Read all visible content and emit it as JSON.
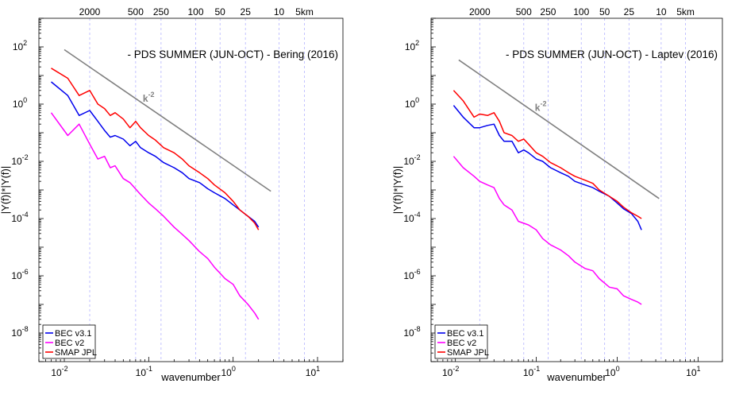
{
  "chart_data": [
    {
      "type": "line",
      "title": "- PDS SUMMER (JUN-OCT) - Bering (2016)",
      "xlabel": "wavenumber",
      "ylabel": "|Y(f)|*|Y(f)|",
      "xscale": "log",
      "yscale": "log",
      "xlim": [
        0.005,
        20
      ],
      "ylim": [
        1e-09,
        1000
      ],
      "xticks": [
        0.01,
        0.1,
        1,
        10
      ],
      "xtick_labels": [
        {
          "base": "10",
          "exp": "-2"
        },
        {
          "base": "10",
          "exp": "-1"
        },
        {
          "base": "10",
          "exp": "0"
        },
        {
          "base": "10",
          "exp": "1"
        }
      ],
      "yticks": [
        1e-08,
        1e-06,
        0.0001,
        0.01,
        1,
        100
      ],
      "ytick_labels": [
        {
          "base": "10",
          "exp": "-8"
        },
        {
          "base": "10",
          "exp": "-6"
        },
        {
          "base": "10",
          "exp": "-4"
        },
        {
          "base": "10",
          "exp": "-2"
        },
        {
          "base": "10",
          "exp": "0"
        },
        {
          "base": "10",
          "exp": "2"
        }
      ],
      "top_axis": {
        "labels": [
          "2000",
          "500",
          "250",
          "100",
          "50",
          "25",
          "10",
          "5km"
        ],
        "positions": [
          0.02,
          0.07,
          0.14,
          0.36,
          0.7,
          1.4,
          3.5,
          7
        ],
        "gridlines": [
          0.02,
          0.07,
          0.14,
          0.36,
          0.7,
          1.4,
          3.5,
          7
        ],
        "grid_color": "#b3b3ff"
      },
      "legend": {
        "placement": "bottom-left",
        "entries": [
          "BEC v3.1",
          "BEC v2",
          "SMAP JPL"
        ]
      },
      "reference_line": {
        "label": "k",
        "exponent": "-2",
        "color": "#808080",
        "x": [
          0.01,
          2.8
        ],
        "y": [
          80,
          0.0009
        ]
      },
      "series": [
        {
          "name": "BEC v3.1",
          "color": "#0000ee",
          "x": [
            0.007,
            0.011,
            0.015,
            0.02,
            0.025,
            0.03,
            0.035,
            0.04,
            0.05,
            0.06,
            0.07,
            0.08,
            0.1,
            0.12,
            0.15,
            0.2,
            0.25,
            0.3,
            0.4,
            0.5,
            0.6,
            0.8,
            1.0,
            1.2,
            1.5,
            1.8,
            2.0
          ],
          "y": [
            6,
            2,
            0.4,
            0.6,
            0.25,
            0.12,
            0.07,
            0.08,
            0.06,
            0.035,
            0.05,
            0.03,
            0.02,
            0.015,
            0.009,
            0.006,
            0.004,
            0.0025,
            0.0018,
            0.0011,
            0.0008,
            0.0005,
            0.0003,
            0.0002,
            0.00012,
            8e-05,
            5e-05
          ]
        },
        {
          "name": "BEC v2",
          "color": "#ff00ff",
          "x": [
            0.007,
            0.011,
            0.015,
            0.02,
            0.025,
            0.03,
            0.035,
            0.04,
            0.05,
            0.06,
            0.08,
            0.1,
            0.12,
            0.15,
            0.2,
            0.25,
            0.3,
            0.4,
            0.5,
            0.6,
            0.8,
            1.0,
            1.2,
            1.5,
            1.8,
            2.0
          ],
          "y": [
            0.5,
            0.08,
            0.2,
            0.04,
            0.012,
            0.015,
            0.006,
            0.007,
            0.0025,
            0.0018,
            0.0007,
            0.00035,
            0.00022,
            0.00012,
            5e-05,
            2.8e-05,
            1.7e-05,
            7e-06,
            4e-06,
            2e-06,
            8e-07,
            5e-07,
            2e-07,
            1e-07,
            5e-08,
            3e-08
          ]
        },
        {
          "name": "SMAP JPL",
          "color": "#ff0000",
          "x": [
            0.007,
            0.011,
            0.015,
            0.02,
            0.025,
            0.03,
            0.035,
            0.04,
            0.05,
            0.06,
            0.07,
            0.08,
            0.1,
            0.12,
            0.15,
            0.2,
            0.25,
            0.3,
            0.4,
            0.5,
            0.6,
            0.8,
            1.0,
            1.2,
            1.5,
            1.8,
            2.0
          ],
          "y": [
            18,
            8,
            2,
            3,
            1,
            0.7,
            0.4,
            0.5,
            0.3,
            0.15,
            0.25,
            0.15,
            0.08,
            0.055,
            0.03,
            0.02,
            0.012,
            0.007,
            0.004,
            0.0025,
            0.0015,
            0.0008,
            0.0004,
            0.0002,
            0.00012,
            7e-05,
            4e-05
          ]
        }
      ]
    },
    {
      "type": "line",
      "title": "- PDS SUMMER (JUN-OCT) - Laptev (2016)",
      "xlabel": "wavenumber",
      "ylabel": "|Y(f)|*|Y(f)|",
      "xscale": "log",
      "yscale": "log",
      "xlim": [
        0.005,
        20
      ],
      "ylim": [
        1e-09,
        1000
      ],
      "xticks": [
        0.01,
        0.1,
        1,
        10
      ],
      "xtick_labels": [
        {
          "base": "10",
          "exp": "-2"
        },
        {
          "base": "10",
          "exp": "-1"
        },
        {
          "base": "10",
          "exp": "0"
        },
        {
          "base": "10",
          "exp": "1"
        }
      ],
      "yticks": [
        1e-08,
        1e-06,
        0.0001,
        0.01,
        1,
        100
      ],
      "ytick_labels": [
        {
          "base": "10",
          "exp": "-8"
        },
        {
          "base": "10",
          "exp": "-6"
        },
        {
          "base": "10",
          "exp": "-4"
        },
        {
          "base": "10",
          "exp": "-2"
        },
        {
          "base": "10",
          "exp": "0"
        },
        {
          "base": "10",
          "exp": "2"
        }
      ],
      "top_axis": {
        "labels": [
          "2000",
          "500",
          "250",
          "100",
          "50",
          "25",
          "10",
          "5km"
        ],
        "positions": [
          0.02,
          0.07,
          0.14,
          0.36,
          0.7,
          1.4,
          3.5,
          7
        ],
        "gridlines": [
          0.02,
          0.07,
          0.14,
          0.36,
          0.7,
          1.4,
          3.5,
          7
        ],
        "grid_color": "#b3b3ff"
      },
      "legend": {
        "placement": "bottom-left",
        "entries": [
          "BEC v3.1",
          "BEC v2",
          "SMAP JPL"
        ]
      },
      "reference_line": {
        "label": "k",
        "exponent": "-2",
        "color": "#808080",
        "x": [
          0.011,
          3.3
        ],
        "y": [
          35,
          0.0005
        ]
      },
      "series": [
        {
          "name": "BEC v3.1",
          "color": "#0000ee",
          "x": [
            0.0095,
            0.0125,
            0.017,
            0.02,
            0.025,
            0.03,
            0.035,
            0.04,
            0.05,
            0.06,
            0.07,
            0.08,
            0.1,
            0.12,
            0.15,
            0.2,
            0.25,
            0.3,
            0.4,
            0.5,
            0.6,
            0.8,
            1.0,
            1.2,
            1.5,
            1.8,
            2.0
          ],
          "y": [
            0.9,
            0.35,
            0.15,
            0.15,
            0.18,
            0.2,
            0.08,
            0.05,
            0.05,
            0.02,
            0.025,
            0.02,
            0.012,
            0.01,
            0.006,
            0.004,
            0.003,
            0.002,
            0.0015,
            0.0012,
            0.0009,
            0.0006,
            0.00035,
            0.00022,
            0.00015,
            8e-05,
            4e-05
          ]
        },
        {
          "name": "BEC v2",
          "color": "#ff00ff",
          "x": [
            0.0095,
            0.0125,
            0.017,
            0.02,
            0.025,
            0.03,
            0.035,
            0.04,
            0.05,
            0.06,
            0.08,
            0.1,
            0.12,
            0.15,
            0.2,
            0.25,
            0.3,
            0.4,
            0.5,
            0.6,
            0.8,
            1.0,
            1.2,
            1.5,
            1.8,
            2.0
          ],
          "y": [
            0.015,
            0.006,
            0.003,
            0.002,
            0.0015,
            0.0012,
            0.0005,
            0.0003,
            0.0002,
            8e-05,
            6e-05,
            4e-05,
            2e-05,
            1.2e-05,
            8e-06,
            5e-06,
            3e-06,
            1.8e-06,
            1.5e-06,
            8e-07,
            4e-07,
            3.5e-07,
            2e-07,
            1.5e-07,
            1.2e-07,
            1e-07
          ]
        },
        {
          "name": "SMAP JPL",
          "color": "#ff0000",
          "x": [
            0.0095,
            0.0125,
            0.017,
            0.02,
            0.025,
            0.03,
            0.035,
            0.04,
            0.05,
            0.06,
            0.07,
            0.08,
            0.1,
            0.12,
            0.15,
            0.2,
            0.25,
            0.3,
            0.4,
            0.5,
            0.6,
            0.8,
            1.0,
            1.2,
            1.5,
            1.8,
            2.0
          ],
          "y": [
            3,
            1.3,
            0.35,
            0.45,
            0.4,
            0.5,
            0.25,
            0.1,
            0.08,
            0.05,
            0.06,
            0.04,
            0.02,
            0.015,
            0.009,
            0.006,
            0.004,
            0.003,
            0.0022,
            0.0017,
            0.001,
            0.0006,
            0.0004,
            0.00025,
            0.00016,
            0.00012,
            0.0001
          ]
        }
      ]
    }
  ]
}
